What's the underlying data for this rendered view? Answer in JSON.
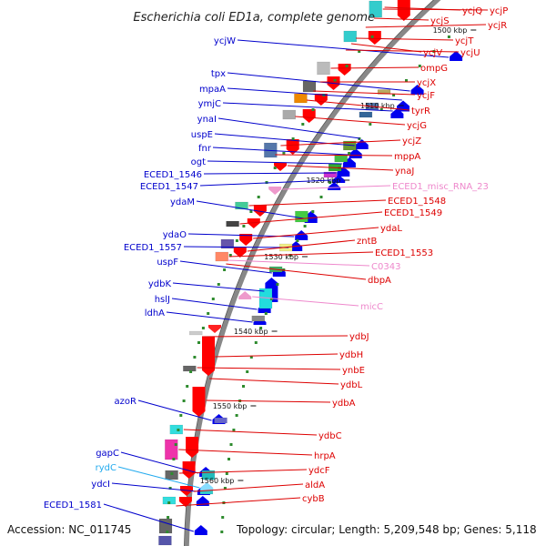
{
  "title": "Escherichia coli ED1a, complete genome",
  "footer": {
    "accession": "Accession: NC_011745",
    "topology": "Topology: circular; Length: 5,209,548 bp; Genes: 5,118"
  },
  "colors": {
    "backbone": "#888888",
    "tick": "#2e8b2e",
    "left_label": "#0000cc",
    "right_label": "#dd0000",
    "rna_label": "#ee88cc",
    "rna_label_left": "#22aaee"
  },
  "ticks": [
    "1500 kbp",
    "1510 kbp",
    "1520 kbp",
    "1530 kbp",
    "1540 kbp",
    "1550 kbp",
    "1560 kbp"
  ],
  "left_genes": [
    "ycjW",
    "tpx",
    "mpaA",
    "ymjC",
    "ynaI",
    "uspE",
    "fnr",
    "ogt",
    "ECED1_1546",
    "ECED1_1547",
    "ydaM",
    "ydaO",
    "ECED1_1557",
    "uspF",
    "ydbK",
    "hslJ",
    "ldhA",
    "azoR",
    "gapC",
    "rydC",
    "ydcI",
    "ECED1_1581"
  ],
  "right_genes": [
    "ycjQ",
    "ycjP",
    "ycjS",
    "ycjR",
    "ycjT",
    "ycjV",
    "ycjU",
    "ompG",
    "ycjX",
    "ycjF",
    "tyrR",
    "ycjG",
    "ycjZ",
    "mppA",
    "ynaJ",
    "ECED1_misc_RNA_23",
    "ECED1_1548",
    "ECED1_1549",
    "ydaL",
    "zntB",
    "ECED1_1553",
    "C0343",
    "dbpA",
    "micC",
    "ydbJ",
    "ydbH",
    "ynbE",
    "ydbL",
    "ydbA",
    "ydbC",
    "hrpA",
    "ydcF",
    "aldA",
    "cybB"
  ],
  "rna_labels": [
    "ECED1_misc_RNA_23",
    "C0343",
    "micC",
    "rydC"
  ]
}
